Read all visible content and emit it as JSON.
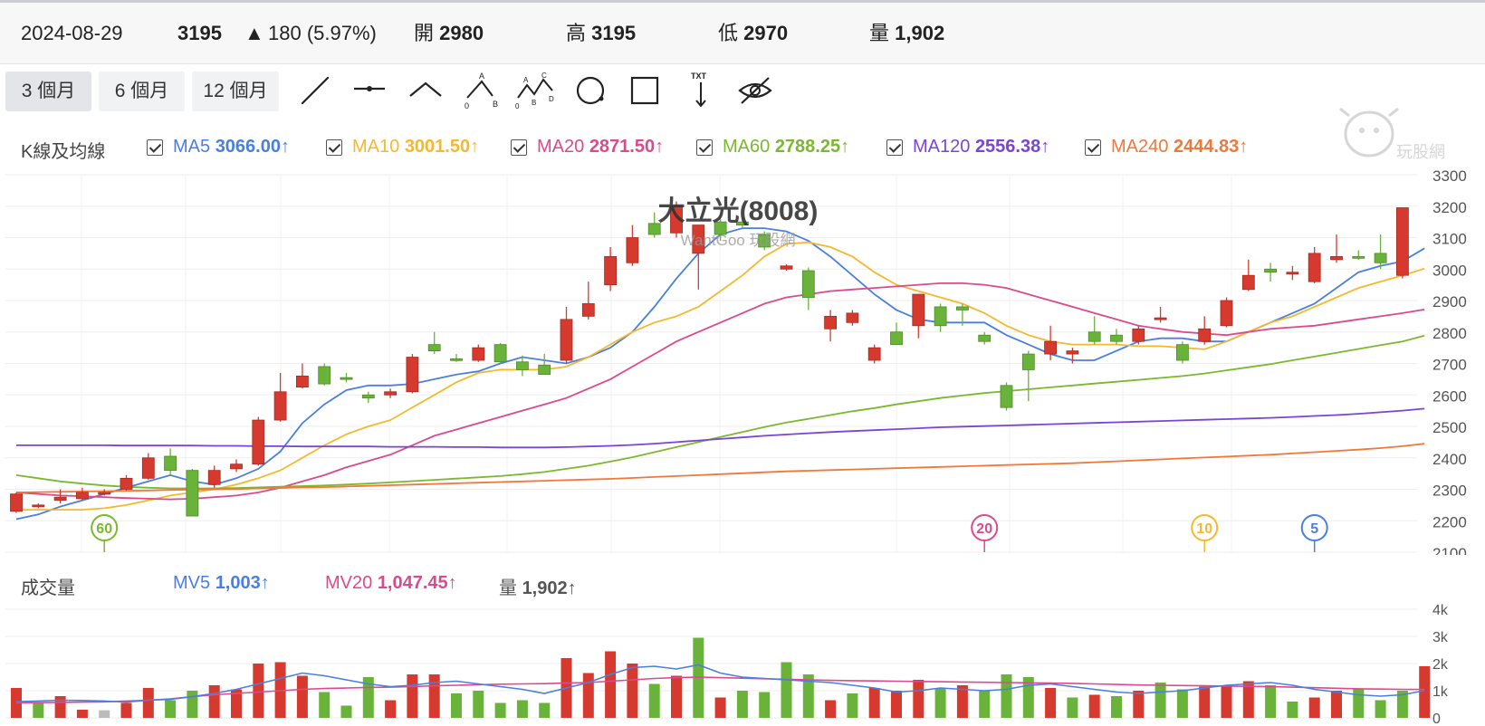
{
  "quote": {
    "date": "2024-08-29",
    "price": "3195",
    "arrow": "▲",
    "change": "180 (5.97%)",
    "open_label": "開",
    "open": "2980",
    "high_label": "高",
    "high": "3195",
    "low_label": "低",
    "low": "2970",
    "volume_label": "量",
    "volume": "1,902"
  },
  "toolbar": {
    "ranges": [
      "3 個月",
      "6 個月",
      "12 個月"
    ],
    "active_range": "3 個月",
    "tools": [
      "trend-line-icon",
      "horizontal-line-icon",
      "angle-line-icon",
      "abc-pattern-icon",
      "abcd-pattern-icon",
      "circle-icon",
      "rectangle-icon",
      "text-arrow-icon",
      "hide-drawings-icon"
    ]
  },
  "legend": {
    "label": "K線及均線",
    "ma": [
      {
        "name": "MA5",
        "value": "3066.00",
        "dir": "↑",
        "color": "#4a7fe0"
      },
      {
        "name": "MA10",
        "value": "3001.50",
        "dir": "↑",
        "color": "#f5b82e"
      },
      {
        "name": "MA20",
        "value": "2871.50",
        "dir": "↑",
        "color": "#dc4a8c"
      },
      {
        "name": "MA60",
        "value": "2788.25",
        "dir": "↑",
        "color": "#7cb82f"
      },
      {
        "name": "MA120",
        "value": "2556.38",
        "dir": "↑",
        "color": "#7a45d6"
      },
      {
        "name": "MA240",
        "value": "2444.83",
        "dir": "↑",
        "color": "#f07838"
      }
    ]
  },
  "watermark": {
    "text": "玩股網"
  },
  "volume_legend": {
    "label": "成交量",
    "items": [
      {
        "name": "MV5",
        "value": "1,003",
        "dir": "↑",
        "color": "#4a7fe0"
      },
      {
        "name": "MV20",
        "value": "1,047.45",
        "dir": "↑",
        "color": "#dc4a8c"
      },
      {
        "name": "量",
        "value": "1,902",
        "dir": "↑",
        "color": "#555555"
      }
    ]
  },
  "chart_data": {
    "type": "candlestick",
    "title": "大立光(8008)",
    "subtitle": "WantGoo 玩股網",
    "ylim": [
      2100,
      3300
    ],
    "yticks": [
      2100,
      2200,
      2300,
      2400,
      2500,
      2600,
      2700,
      2800,
      2900,
      3000,
      3100,
      3200,
      3300
    ],
    "colors": {
      "up": "#d63a2e",
      "down": "#6ab33a",
      "flat": "#bbbbbb"
    },
    "candles": [
      {
        "o": 2230,
        "h": 2290,
        "l": 2225,
        "c": 2285
      },
      {
        "o": 2245,
        "h": 2255,
        "l": 2240,
        "c": 2250
      },
      {
        "o": 2265,
        "h": 2300,
        "l": 2255,
        "c": 2275
      },
      {
        "o": 2270,
        "h": 2305,
        "l": 2265,
        "c": 2290
      },
      {
        "o": 2285,
        "h": 2300,
        "l": 2280,
        "c": 2290
      },
      {
        "o": 2300,
        "h": 2345,
        "l": 2295,
        "c": 2335
      },
      {
        "o": 2335,
        "h": 2415,
        "l": 2330,
        "c": 2400
      },
      {
        "o": 2405,
        "h": 2430,
        "l": 2345,
        "c": 2360
      },
      {
        "o": 2360,
        "h": 2365,
        "l": 2215,
        "c": 2215
      },
      {
        "o": 2315,
        "h": 2375,
        "l": 2305,
        "c": 2360
      },
      {
        "o": 2365,
        "h": 2395,
        "l": 2355,
        "c": 2380
      },
      {
        "o": 2380,
        "h": 2530,
        "l": 2375,
        "c": 2520
      },
      {
        "o": 2520,
        "h": 2670,
        "l": 2515,
        "c": 2610
      },
      {
        "o": 2625,
        "h": 2700,
        "l": 2620,
        "c": 2660
      },
      {
        "o": 2690,
        "h": 2700,
        "l": 2630,
        "c": 2635
      },
      {
        "o": 2655,
        "h": 2670,
        "l": 2640,
        "c": 2650
      },
      {
        "o": 2600,
        "h": 2610,
        "l": 2575,
        "c": 2590
      },
      {
        "o": 2600,
        "h": 2620,
        "l": 2590,
        "c": 2610
      },
      {
        "o": 2610,
        "h": 2730,
        "l": 2605,
        "c": 2720
      },
      {
        "o": 2760,
        "h": 2800,
        "l": 2730,
        "c": 2740
      },
      {
        "o": 2715,
        "h": 2730,
        "l": 2705,
        "c": 2710
      },
      {
        "o": 2710,
        "h": 2760,
        "l": 2705,
        "c": 2750
      },
      {
        "o": 2760,
        "h": 2765,
        "l": 2700,
        "c": 2705
      },
      {
        "o": 2705,
        "h": 2725,
        "l": 2660,
        "c": 2680
      },
      {
        "o": 2695,
        "h": 2730,
        "l": 2665,
        "c": 2665
      },
      {
        "o": 2710,
        "h": 2880,
        "l": 2700,
        "c": 2840
      },
      {
        "o": 2850,
        "h": 2960,
        "l": 2840,
        "c": 2890
      },
      {
        "o": 2950,
        "h": 3070,
        "l": 2930,
        "c": 3040
      },
      {
        "o": 3020,
        "h": 3140,
        "l": 3010,
        "c": 3100
      },
      {
        "o": 3145,
        "h": 3180,
        "l": 3100,
        "c": 3110
      },
      {
        "o": 3115,
        "h": 3215,
        "l": 3100,
        "c": 3200
      },
      {
        "o": 3050,
        "h": 3140,
        "l": 2935,
        "c": 3140
      },
      {
        "o": 3150,
        "h": 3160,
        "l": 3090,
        "c": 3110
      },
      {
        "o": 3150,
        "h": 3165,
        "l": 3130,
        "c": 3140
      },
      {
        "o": 3110,
        "h": 3120,
        "l": 3060,
        "c": 3070
      },
      {
        "o": 3000,
        "h": 3015,
        "l": 2995,
        "c": 3010
      },
      {
        "o": 2995,
        "h": 3005,
        "l": 2870,
        "c": 2910
      },
      {
        "o": 2810,
        "h": 2870,
        "l": 2770,
        "c": 2850
      },
      {
        "o": 2830,
        "h": 2870,
        "l": 2820,
        "c": 2860
      },
      {
        "o": 2710,
        "h": 2760,
        "l": 2700,
        "c": 2750
      },
      {
        "o": 2800,
        "h": 2830,
        "l": 2770,
        "c": 2760
      },
      {
        "o": 2820,
        "h": 2920,
        "l": 2780,
        "c": 2920
      },
      {
        "o": 2880,
        "h": 2890,
        "l": 2800,
        "c": 2820
      },
      {
        "o": 2880,
        "h": 2890,
        "l": 2820,
        "c": 2870
      },
      {
        "o": 2790,
        "h": 2800,
        "l": 2760,
        "c": 2770
      },
      {
        "o": 2630,
        "h": 2640,
        "l": 2550,
        "c": 2560
      },
      {
        "o": 2730,
        "h": 2740,
        "l": 2580,
        "c": 2680
      },
      {
        "o": 2730,
        "h": 2820,
        "l": 2710,
        "c": 2770
      },
      {
        "o": 2730,
        "h": 2750,
        "l": 2700,
        "c": 2740
      },
      {
        "o": 2800,
        "h": 2850,
        "l": 2760,
        "c": 2770
      },
      {
        "o": 2790,
        "h": 2810,
        "l": 2760,
        "c": 2770
      },
      {
        "o": 2770,
        "h": 2820,
        "l": 2760,
        "c": 2810
      },
      {
        "o": 2840,
        "h": 2880,
        "l": 2830,
        "c": 2845
      },
      {
        "o": 2760,
        "h": 2770,
        "l": 2700,
        "c": 2710
      },
      {
        "o": 2770,
        "h": 2850,
        "l": 2760,
        "c": 2810
      },
      {
        "o": 2820,
        "h": 2910,
        "l": 2815,
        "c": 2900
      },
      {
        "o": 2935,
        "h": 3030,
        "l": 2930,
        "c": 2980
      },
      {
        "o": 3000,
        "h": 3020,
        "l": 2960,
        "c": 2990
      },
      {
        "o": 2985,
        "h": 3010,
        "l": 2965,
        "c": 2990
      },
      {
        "o": 2960,
        "h": 3070,
        "l": 2955,
        "c": 3050
      },
      {
        "o": 3030,
        "h": 3110,
        "l": 3020,
        "c": 3040
      },
      {
        "o": 3040,
        "h": 3060,
        "l": 3030,
        "c": 3035
      },
      {
        "o": 3050,
        "h": 3110,
        "l": 3000,
        "c": 3020
      },
      {
        "o": 2980,
        "h": 3195,
        "l": 2970,
        "c": 3195
      }
    ],
    "ma_lines": [
      {
        "name": "MA5",
        "color": "#4a7fe0",
        "values": [
          2205,
          2220,
          2245,
          2265,
          2285,
          2305,
          2325,
          2345,
          2325,
          2315,
          2335,
          2365,
          2420,
          2510,
          2570,
          2615,
          2630,
          2630,
          2635,
          2650,
          2665,
          2675,
          2700,
          2720,
          2710,
          2700,
          2720,
          2750,
          2800,
          2880,
          2970,
          3050,
          3110,
          3130,
          3130,
          3120,
          3090,
          3040,
          2980,
          2920,
          2870,
          2840,
          2830,
          2830,
          2830,
          2790,
          2760,
          2730,
          2710,
          2710,
          2740,
          2770,
          2780,
          2780,
          2770,
          2770,
          2800,
          2830,
          2860,
          2890,
          2940,
          2990,
          3010,
          3025,
          3066
        ]
      },
      {
        "name": "MA10",
        "color": "#f5b82e",
        "values": [
          2235,
          2235,
          2235,
          2235,
          2240,
          2250,
          2265,
          2280,
          2290,
          2300,
          2315,
          2335,
          2360,
          2400,
          2440,
          2475,
          2500,
          2520,
          2560,
          2600,
          2640,
          2670,
          2680,
          2680,
          2680,
          2690,
          2720,
          2760,
          2800,
          2830,
          2850,
          2880,
          2930,
          2980,
          3040,
          3080,
          3085,
          3070,
          3040,
          2990,
          2950,
          2930,
          2910,
          2890,
          2860,
          2820,
          2790,
          2770,
          2760,
          2760,
          2760,
          2755,
          2755,
          2750,
          2745,
          2770,
          2800,
          2830,
          2850,
          2880,
          2910,
          2940,
          2960,
          2980,
          3001.5
        ]
      },
      {
        "name": "MA20",
        "color": "#dc4a8c",
        "values": [
          2290,
          2285,
          2280,
          2278,
          2275,
          2272,
          2270,
          2268,
          2270,
          2275,
          2280,
          2290,
          2305,
          2325,
          2345,
          2370,
          2390,
          2410,
          2440,
          2470,
          2490,
          2510,
          2530,
          2550,
          2570,
          2590,
          2620,
          2650,
          2690,
          2730,
          2770,
          2800,
          2830,
          2860,
          2890,
          2910,
          2920,
          2930,
          2935,
          2940,
          2945,
          2950,
          2955,
          2955,
          2950,
          2940,
          2920,
          2900,
          2880,
          2860,
          2840,
          2820,
          2810,
          2800,
          2795,
          2790,
          2800,
          2810,
          2815,
          2820,
          2830,
          2840,
          2850,
          2860,
          2871.5
        ]
      },
      {
        "name": "MA60",
        "color": "#7cb82f",
        "values": [
          2345,
          2335,
          2325,
          2318,
          2312,
          2308,
          2305,
          2303,
          2303,
          2303,
          2304,
          2306,
          2308,
          2310,
          2312,
          2315,
          2318,
          2322,
          2326,
          2330,
          2334,
          2338,
          2342,
          2348,
          2355,
          2365,
          2375,
          2388,
          2402,
          2418,
          2434,
          2450,
          2466,
          2482,
          2498,
          2512,
          2524,
          2536,
          2548,
          2558,
          2570,
          2580,
          2590,
          2598,
          2606,
          2612,
          2618,
          2624,
          2630,
          2636,
          2642,
          2648,
          2654,
          2660,
          2668,
          2678,
          2688,
          2698,
          2710,
          2722,
          2734,
          2746,
          2758,
          2770,
          2788.25
        ]
      },
      {
        "name": "MA120",
        "color": "#7a45d6",
        "values": [
          2440,
          2440,
          2440,
          2440,
          2440,
          2439,
          2439,
          2439,
          2439,
          2438,
          2438,
          2437,
          2437,
          2436,
          2436,
          2436,
          2436,
          2435,
          2435,
          2435,
          2434,
          2434,
          2433,
          2433,
          2433,
          2434,
          2436,
          2438,
          2441,
          2445,
          2450,
          2455,
          2460,
          2465,
          2470,
          2474,
          2478,
          2482,
          2485,
          2488,
          2491,
          2494,
          2497,
          2499,
          2501,
          2503,
          2505,
          2507,
          2509,
          2511,
          2513,
          2515,
          2517,
          2519,
          2521,
          2523,
          2525,
          2527,
          2530,
          2533,
          2536,
          2540,
          2545,
          2550,
          2556.38
        ]
      },
      {
        "name": "MA240",
        "color": "#f07838",
        "values": [
          2290,
          2291,
          2292,
          2293,
          2294,
          2295,
          2296,
          2298,
          2299,
          2300,
          2301,
          2303,
          2304,
          2306,
          2307,
          2309,
          2311,
          2313,
          2315,
          2317,
          2319,
          2321,
          2323,
          2325,
          2327,
          2329,
          2331,
          2333,
          2336,
          2339,
          2342,
          2345,
          2348,
          2351,
          2354,
          2357,
          2359,
          2361,
          2363,
          2365,
          2367,
          2369,
          2371,
          2373,
          2375,
          2377,
          2379,
          2381,
          2383,
          2386,
          2389,
          2392,
          2395,
          2398,
          2401,
          2404,
          2407,
          2410,
          2414,
          2418,
          2422,
          2426,
          2431,
          2437,
          2444.83
        ]
      }
    ],
    "markers": [
      {
        "label": "60",
        "index": 4,
        "color": "#7cb82f"
      },
      {
        "label": "20",
        "index": 44,
        "color": "#dc4a8c"
      },
      {
        "label": "10",
        "index": 54,
        "color": "#f5b82e"
      },
      {
        "label": "5",
        "index": 59,
        "color": "#4a7fe0"
      }
    ],
    "volume": {
      "ylim": [
        0,
        4000
      ],
      "ytick_labels": [
        "4k",
        "3k",
        "2k",
        "1k",
        "0"
      ],
      "yticks": [
        4000,
        3000,
        2000,
        1000,
        0
      ],
      "bars": [
        1100,
        550,
        800,
        300,
        280,
        550,
        1100,
        650,
        1000,
        1200,
        1050,
        2000,
        2050,
        1550,
        950,
        450,
        1500,
        650,
        1600,
        1600,
        900,
        1000,
        550,
        650,
        550,
        2200,
        1650,
        2450,
        2000,
        1250,
        1550,
        2950,
        750,
        1000,
        950,
        2050,
        1600,
        650,
        900,
        1100,
        1000,
        1400,
        1100,
        1200,
        1000,
        1600,
        1500,
        1100,
        750,
        850,
        800,
        1000,
        1300,
        1050,
        1150,
        1200,
        1350,
        1200,
        600,
        750,
        1000,
        1050,
        650,
        1000,
        1902
      ],
      "bar_colors": [
        "up",
        "down",
        "up",
        "up",
        "flat",
        "up",
        "up",
        "down",
        "down",
        "up",
        "up",
        "up",
        "up",
        "up",
        "down",
        "down",
        "down",
        "up",
        "up",
        "up",
        "down",
        "down",
        "down",
        "down",
        "down",
        "up",
        "up",
        "up",
        "up",
        "down",
        "up",
        "down",
        "up",
        "down",
        "down",
        "down",
        "down",
        "up",
        "down",
        "up",
        "up",
        "up",
        "down",
        "up",
        "down",
        "down",
        "down",
        "up",
        "down",
        "up",
        "down",
        "up",
        "down",
        "down",
        "up",
        "up",
        "up",
        "down",
        "down",
        "up",
        "up",
        "down",
        "down",
        "down",
        "up"
      ],
      "mv5": [
        600,
        620,
        650,
        640,
        620,
        580,
        650,
        680,
        780,
        900,
        1050,
        1250,
        1450,
        1650,
        1550,
        1400,
        1250,
        1150,
        1200,
        1300,
        1350,
        1250,
        1150,
        1050,
        900,
        1100,
        1300,
        1600,
        1850,
        1900,
        1800,
        1950,
        1650,
        1500,
        1450,
        1400,
        1350,
        1300,
        1200,
        1100,
        950,
        1000,
        1100,
        1050,
        1000,
        1050,
        1200,
        1250,
        1150,
        1050,
        950,
        900,
        950,
        1000,
        1100,
        1200,
        1250,
        1300,
        1200,
        1050,
        950,
        850,
        800,
        850,
        1003
      ],
      "mv20": [
        550,
        560,
        570,
        580,
        590,
        620,
        650,
        700,
        780,
        850,
        900,
        950,
        1000,
        1050,
        1080,
        1100,
        1120,
        1130,
        1150,
        1180,
        1200,
        1220,
        1240,
        1250,
        1260,
        1280,
        1300,
        1350,
        1400,
        1450,
        1480,
        1500,
        1480,
        1460,
        1440,
        1420,
        1400,
        1380,
        1370,
        1360,
        1350,
        1340,
        1330,
        1320,
        1310,
        1300,
        1290,
        1280,
        1270,
        1250,
        1230,
        1210,
        1200,
        1190,
        1180,
        1170,
        1160,
        1150,
        1130,
        1110,
        1090,
        1070,
        1060,
        1050,
        1047.45
      ]
    }
  }
}
